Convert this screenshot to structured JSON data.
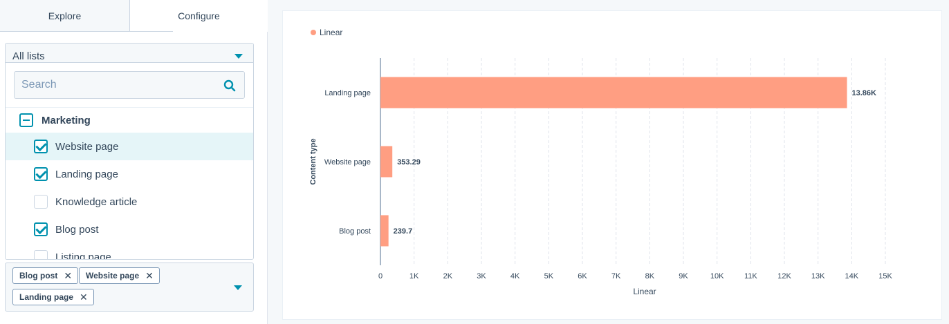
{
  "tabs": [
    {
      "label": "Explore"
    },
    {
      "label": "Configure"
    }
  ],
  "list_dropdown": {
    "selected": "All lists",
    "search_placeholder": "Search",
    "group": "Marketing",
    "items": [
      {
        "label": "Website page",
        "checked": true
      },
      {
        "label": "Landing page",
        "checked": true
      },
      {
        "label": "Knowledge article",
        "checked": false
      },
      {
        "label": "Blog post",
        "checked": true
      },
      {
        "label": "Listing page",
        "checked": false
      }
    ]
  },
  "selected_tags": [
    {
      "label": "Blog post"
    },
    {
      "label": "Website page"
    },
    {
      "label": "Landing page"
    }
  ],
  "tag_remove_glyph": "✕",
  "colors": {
    "accent": "#0091ae",
    "bar": "#ff9e82",
    "text": "#33475b",
    "border": "#cbd6e2"
  },
  "chart_data": {
    "type": "bar",
    "orientation": "horizontal",
    "legend": {
      "label": "Linear",
      "placement": "top-left"
    },
    "categories": [
      "Landing page",
      "Website page",
      "Blog post"
    ],
    "series": [
      {
        "name": "Linear",
        "values": [
          13860,
          353.29,
          239.7
        ]
      }
    ],
    "data_labels": [
      "13.86K",
      "353.29",
      "239.7"
    ],
    "xlabel": "Linear",
    "ylabel": "Content type",
    "xlim": [
      0,
      15000
    ],
    "x_ticks": [
      "0",
      "1K",
      "2K",
      "3K",
      "4K",
      "5K",
      "6K",
      "7K",
      "8K",
      "9K",
      "10K",
      "11K",
      "12K",
      "13K",
      "14K",
      "15K"
    ],
    "grid": true
  }
}
